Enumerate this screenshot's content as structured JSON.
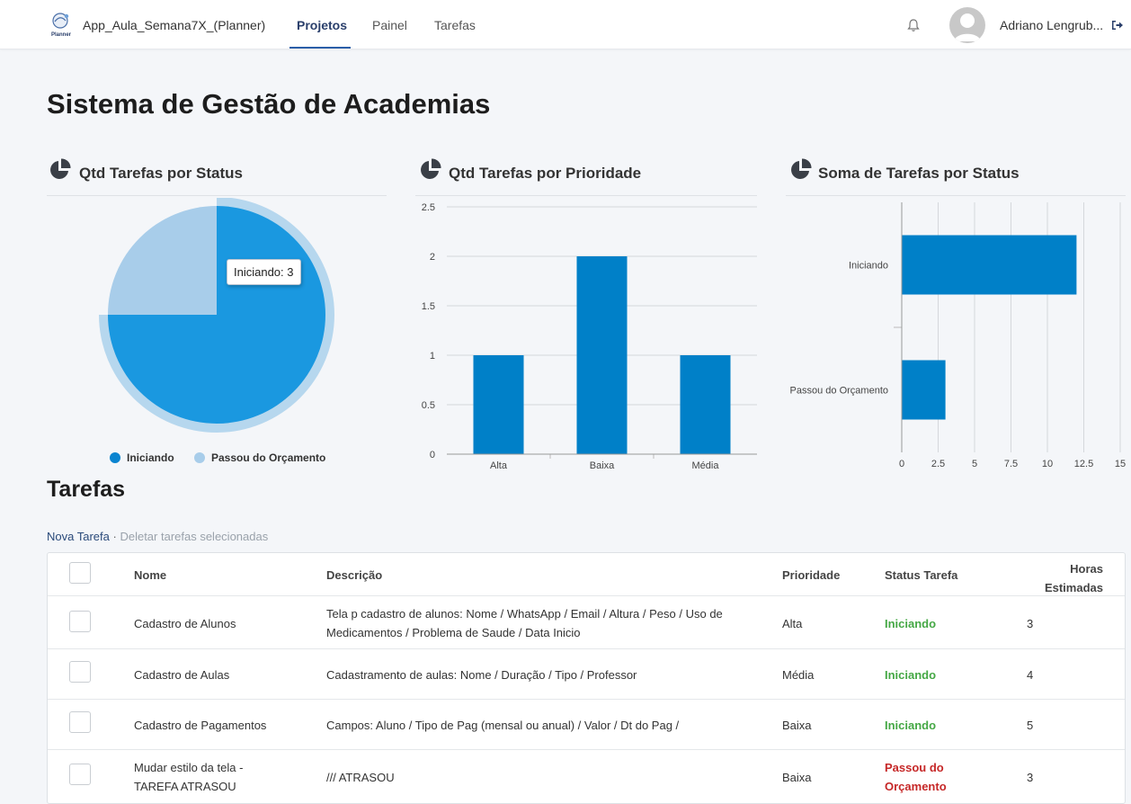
{
  "app": {
    "title": "App_Aula_Semana7X_(Planner)",
    "logo_text": "Planner",
    "nav": [
      "Projetos",
      "Painel",
      "Tarefas"
    ],
    "active_tab": "Projetos",
    "user_name": "Adriano Lengrub..."
  },
  "page": {
    "title": "Sistema de Gestão de Academias"
  },
  "colors": {
    "primary": "#0080c8",
    "pie_main": "#1a98e0",
    "pie_light": "#a8cdea",
    "ok": "#45a845",
    "late": "#c62828"
  },
  "charts": {
    "status_pie": {
      "title": "Qtd Tarefas por Status",
      "tooltip": "Iniciando: 3"
    },
    "priority_bar": {
      "title": "Qtd Tarefas por Prioridade"
    },
    "sum_bar": {
      "title": "Soma de Tarefas por Status"
    }
  },
  "chart_data": [
    {
      "type": "pie",
      "title": "Qtd Tarefas por Status",
      "categories": [
        "Iniciando",
        "Passou do Orçamento"
      ],
      "values": [
        3,
        1
      ],
      "legend": "bottom"
    },
    {
      "type": "bar",
      "title": "Qtd Tarefas por Prioridade",
      "categories": [
        "Alta",
        "Baixa",
        "Média"
      ],
      "values": [
        1,
        2,
        1
      ],
      "ylim": [
        0,
        2.5
      ],
      "yticks": [
        "0",
        "0.5",
        "1",
        "1.5",
        "2",
        "2.5"
      ]
    },
    {
      "type": "bar",
      "orientation": "horizontal",
      "title": "Soma de Tarefas por Status",
      "categories": [
        "Iniciando",
        "Passou do Orçamento"
      ],
      "values": [
        12,
        3
      ],
      "xlim": [
        0,
        15
      ],
      "xticks": [
        "0",
        "2.5",
        "5",
        "7.5",
        "10",
        "12.5",
        "15"
      ]
    }
  ],
  "tasks": {
    "title": "Tarefas",
    "new_label": "Nova Tarefa",
    "separator": "·",
    "delete_label": "Deletar tarefas selecionadas",
    "headers": {
      "name": "Nome",
      "description": "Descrição",
      "priority": "Prioridade",
      "status": "Status Tarefa",
      "hours_1": "Horas",
      "hours_2": "Estimadas"
    },
    "rows": [
      {
        "name": "Cadastro de Alunos",
        "description": "Tela p cadastro de alunos: Nome / WhatsApp / Email / Altura / Peso / Uso de Medicamentos / Problema de Saude / Data Inicio",
        "priority": "Alta",
        "status": "Iniciando",
        "hours": "3"
      },
      {
        "name": "Cadastro de Aulas",
        "description": "Cadastramento de aulas: Nome / Duração / Tipo / Professor",
        "priority": "Média",
        "status": "Iniciando",
        "hours": "4"
      },
      {
        "name": "Cadastro de Pagamentos",
        "description": "Campos: Aluno / Tipo de Pag (mensal ou anual) / Valor / Dt do Pag /",
        "priority": "Baixa",
        "status": "Iniciando",
        "hours": "5"
      },
      {
        "name": "Mudar estilo da tela - TAREFA ATRASOU",
        "description": "/// ATRASOU",
        "priority": "Baixa",
        "status": "Passou do Orçamento",
        "hours": "3"
      }
    ]
  }
}
